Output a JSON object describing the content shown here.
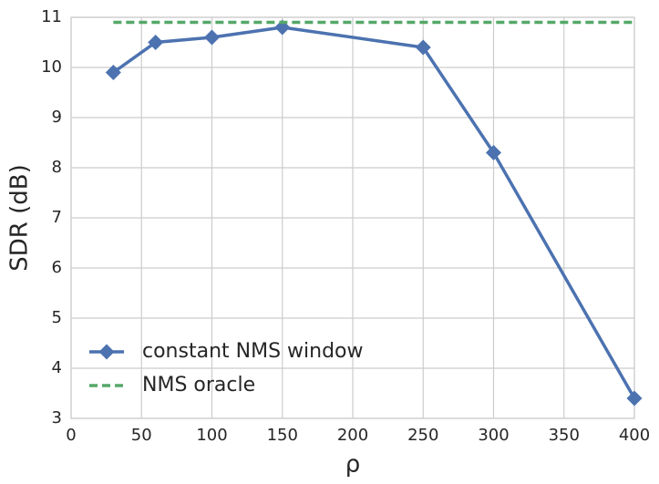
{
  "chart_data": {
    "type": "line",
    "xlabel": "ρ",
    "ylabel": "SDR (dB)",
    "x": [
      30,
      60,
      100,
      150,
      250,
      300,
      400
    ],
    "series": [
      {
        "name": "constant NMS window",
        "color": "#4c72b0",
        "values": [
          9.9,
          10.5,
          10.6,
          10.8,
          10.4,
          8.3,
          3.4
        ],
        "marker": "diamond"
      },
      {
        "name": "NMS oracle",
        "color": "#55a868",
        "values": [
          10.9,
          10.9,
          10.9,
          10.9,
          10.9,
          10.9,
          10.9
        ],
        "dashed": true
      }
    ],
    "xlim": [
      0,
      400
    ],
    "xticks": [
      0,
      50,
      100,
      150,
      200,
      250,
      300,
      350,
      400
    ],
    "ylim": [
      3,
      11
    ],
    "yticks": [
      3,
      4,
      5,
      6,
      7,
      8,
      9,
      10,
      11
    ],
    "grid": true,
    "legend": "lower left"
  }
}
